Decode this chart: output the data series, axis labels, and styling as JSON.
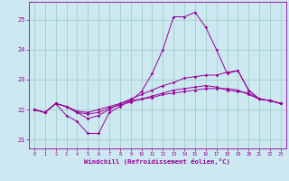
{
  "xlabel": "Windchill (Refroidissement éolien,°C)",
  "bg_color": "#cce8f0",
  "line_color": "#990099",
  "grid_color": "#99ccbb",
  "xlim": [
    -0.5,
    23.5
  ],
  "ylim": [
    20.7,
    25.6
  ],
  "xticks": [
    0,
    1,
    2,
    3,
    4,
    5,
    6,
    7,
    8,
    9,
    10,
    11,
    12,
    13,
    14,
    15,
    16,
    17,
    18,
    19,
    20,
    21,
    22,
    23
  ],
  "yticks": [
    21,
    22,
    23,
    24,
    25
  ],
  "lines": [
    [
      22.0,
      21.9,
      22.2,
      21.8,
      21.6,
      21.2,
      21.2,
      21.9,
      22.1,
      22.3,
      22.6,
      23.2,
      24.0,
      25.1,
      25.1,
      25.25,
      24.75,
      24.0,
      23.2,
      23.3,
      22.65,
      22.35,
      22.3,
      22.2
    ],
    [
      22.0,
      21.9,
      22.2,
      22.1,
      21.9,
      21.7,
      21.8,
      22.0,
      22.2,
      22.35,
      22.5,
      22.65,
      22.8,
      22.9,
      23.05,
      23.1,
      23.15,
      23.15,
      23.25,
      23.3,
      22.65,
      22.35,
      22.3,
      22.2
    ],
    [
      22.0,
      21.9,
      22.2,
      22.1,
      21.9,
      21.85,
      21.9,
      22.05,
      22.15,
      22.25,
      22.35,
      22.45,
      22.55,
      22.65,
      22.7,
      22.75,
      22.8,
      22.75,
      22.65,
      22.6,
      22.55,
      22.35,
      22.3,
      22.2
    ],
    [
      22.0,
      21.9,
      22.2,
      22.1,
      21.95,
      21.9,
      22.0,
      22.1,
      22.2,
      22.3,
      22.35,
      22.4,
      22.5,
      22.55,
      22.6,
      22.65,
      22.7,
      22.7,
      22.7,
      22.65,
      22.5,
      22.35,
      22.3,
      22.2
    ]
  ]
}
